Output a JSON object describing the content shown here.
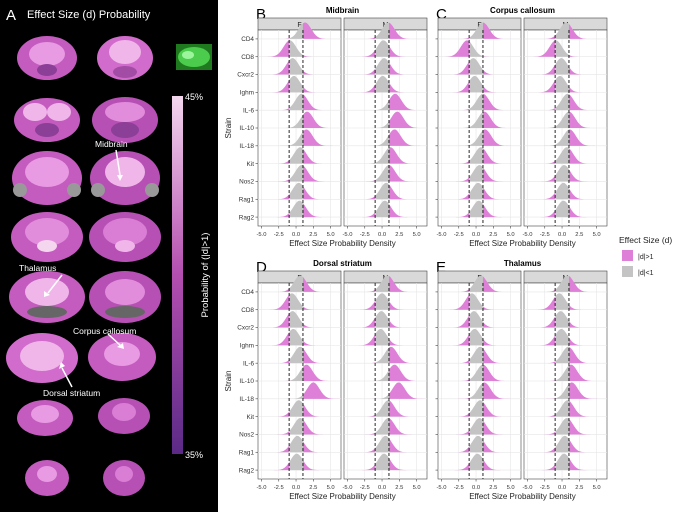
{
  "panel_a": {
    "letter": "A",
    "title": "Effect Size (d) Probability",
    "colorbar": {
      "max_label": "45%",
      "min_label": "35%",
      "title": "Probability of (|d|>1)",
      "low_color": "#5b2a86",
      "high_color": "#f4d6ee"
    },
    "callouts": [
      "Midbrain",
      "Thalamus",
      "Corpus callosum",
      "Dorsal striatum"
    ]
  },
  "chart_data": [
    {
      "type": "ridgeline",
      "letter": "B",
      "title": "Midbrain",
      "facets": [
        "F",
        "M"
      ],
      "categories": [
        "CD4",
        "CD8",
        "Cxcr2",
        "Ighm",
        "IL-6",
        "IL-10",
        "IL-18",
        "Kit",
        "Nos2",
        "Rag1",
        "Rag2"
      ],
      "xlabel": "Effect Size Probability Density",
      "ylabel": "Strain",
      "xlim": [
        -5.5,
        6.5
      ],
      "xticks": [
        -5.0,
        -2.5,
        0.0,
        2.5,
        5.0
      ],
      "xtick_labels": [
        "-5.0",
        "-2.5",
        "0.0",
        "2.5",
        "5.0"
      ],
      "ref_lines": [
        -1,
        1
      ],
      "peaks": {
        "F": [
          1.3,
          -0.9,
          -0.5,
          -0.3,
          0.8,
          1.6,
          1.5,
          0.6,
          0.8,
          0.4,
          0.5
        ],
        "M": [
          0.9,
          0.2,
          0.3,
          0.1,
          1.9,
          2.2,
          1.8,
          1.2,
          1.0,
          0.6,
          0.4
        ]
      }
    },
    {
      "type": "ridgeline",
      "letter": "C",
      "title": "Corpus callosum",
      "facets": [
        "F",
        "M"
      ],
      "categories": [
        "CD4",
        "CD8",
        "Cxcr2",
        "Ighm",
        "IL-6",
        "IL-10",
        "IL-18",
        "Kit",
        "Nos2",
        "Rag1",
        "Rag2"
      ],
      "xlabel": "Effect Size Probability Density",
      "ylabel": "",
      "xlim": [
        -5.5,
        6.5
      ],
      "xticks": [
        -5.0,
        -2.5,
        0.0,
        2.5,
        5.0
      ],
      "xtick_labels": [
        "-5.0",
        "-2.5",
        "0.0",
        "2.5",
        "5.0"
      ],
      "ref_lines": [
        -1,
        1
      ],
      "peaks": {
        "F": [
          1.0,
          -1.3,
          -0.4,
          -0.2,
          1.0,
          1.2,
          1.3,
          0.7,
          0.5,
          0.3,
          0.4
        ],
        "M": [
          0.6,
          -0.9,
          -0.1,
          -0.3,
          0.8,
          1.0,
          1.1,
          0.7,
          0.3,
          0.2,
          0.2
        ]
      }
    },
    {
      "type": "ridgeline",
      "letter": "D",
      "title": "Dorsal striatum",
      "facets": [
        "F",
        "M"
      ],
      "categories": [
        "CD4",
        "CD8",
        "Cxcr2",
        "Ighm",
        "IL-6",
        "IL-10",
        "IL-18",
        "Kit",
        "Nos2",
        "Rag1",
        "Rag2"
      ],
      "xlabel": "Effect Size Probability Density",
      "ylabel": "Strain",
      "xlim": [
        -5.5,
        6.5
      ],
      "xticks": [
        -5.0,
        -2.5,
        0.0,
        2.5,
        5.0
      ],
      "xtick_labels": [
        "-5.0",
        "-2.5",
        "0.0",
        "2.5",
        "5.0"
      ],
      "ref_lines": [
        -1,
        1
      ],
      "peaks": {
        "F": [
          0.6,
          -0.6,
          -0.5,
          -0.4,
          0.6,
          1.5,
          2.5,
          0.4,
          0.6,
          0.2,
          0.1
        ],
        "M": [
          0.8,
          0.0,
          -0.1,
          -0.2,
          1.3,
          1.8,
          2.4,
          0.9,
          0.9,
          0.5,
          0.3
        ]
      }
    },
    {
      "type": "ridgeline",
      "letter": "E",
      "title": "Thalamus",
      "facets": [
        "F",
        "M"
      ],
      "categories": [
        "CD4",
        "CD8",
        "Cxcr2",
        "Ighm",
        "IL-6",
        "IL-10",
        "IL-18",
        "Kit",
        "Nos2",
        "Rag1",
        "Rag2"
      ],
      "xlabel": "Effect Size Probability Density",
      "ylabel": "",
      "xlim": [
        -5.5,
        6.5
      ],
      "xticks": [
        -5.0,
        -2.5,
        0.0,
        2.5,
        5.0
      ],
      "xtick_labels": [
        "-5.0",
        "-2.5",
        "0.0",
        "2.5",
        "5.0"
      ],
      "ref_lines": [
        -1,
        1
      ],
      "peaks": {
        "F": [
          0.7,
          -0.6,
          -0.3,
          -0.2,
          0.6,
          1.0,
          1.2,
          0.6,
          0.5,
          0.3,
          0.2
        ],
        "M": [
          0.8,
          -0.4,
          -0.2,
          -0.1,
          0.9,
          1.3,
          1.4,
          0.8,
          0.7,
          0.4,
          0.3
        ]
      }
    }
  ],
  "legend": {
    "title": "Effect Size (d)",
    "entries": [
      {
        "label": "|d|>1",
        "color": "#de7fd8"
      },
      {
        "label": "|d|<1",
        "color": "#c4c4c4"
      }
    ]
  }
}
